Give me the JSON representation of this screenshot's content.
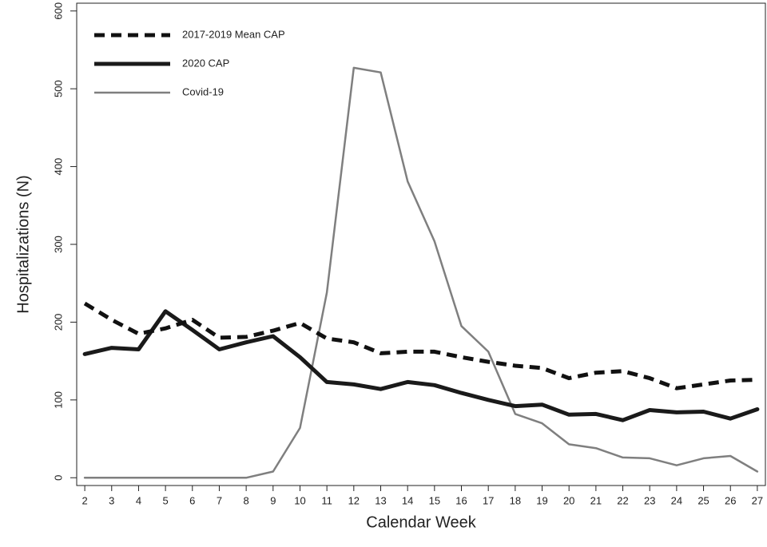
{
  "chart_data": {
    "type": "line",
    "title": "",
    "xlabel": "Calendar Week",
    "ylabel": "Hospitalizations (N)",
    "xlim": [
      1.7,
      27.3
    ],
    "ylim": [
      -10,
      610
    ],
    "grid": false,
    "legend_position": "top-left",
    "x": [
      2,
      3,
      4,
      5,
      6,
      7,
      8,
      9,
      10,
      11,
      12,
      13,
      14,
      15,
      16,
      17,
      18,
      19,
      20,
      21,
      22,
      23,
      24,
      25,
      26,
      27
    ],
    "x_tick_labels": [
      "2",
      "3",
      "4",
      "5",
      "6",
      "7",
      "8",
      "9",
      "10",
      "11",
      "12",
      "13",
      "14",
      "15",
      "16",
      "17",
      "18",
      "19",
      "20",
      "21",
      "22",
      "23",
      "24",
      "25",
      "26",
      "27"
    ],
    "y_ticks": [
      0,
      100,
      200,
      300,
      400,
      500,
      600
    ],
    "y_tick_labels": [
      "0",
      "100",
      "200",
      "300",
      "400",
      "500",
      "600"
    ],
    "series": [
      {
        "name": "2017-2019 Mean CAP",
        "style": "dashed-thick",
        "color": "#111111",
        "values": [
          224,
          203,
          185,
          192,
          203,
          180,
          181,
          189,
          199,
          179,
          174,
          160,
          162,
          162,
          155,
          149,
          144,
          141,
          128,
          135,
          137,
          128,
          115,
          120,
          125,
          126
        ]
      },
      {
        "name": "2020 CAP",
        "style": "solid-thick",
        "color": "#1a1a1a",
        "values": [
          159,
          167,
          165,
          214,
          190,
          165,
          174,
          182,
          155,
          123,
          120,
          114,
          123,
          119,
          109,
          100,
          92,
          94,
          81,
          82,
          74,
          87,
          84,
          85,
          76,
          88
        ]
      },
      {
        "name": "Covid-19",
        "style": "solid-thin",
        "color": "#7f7f7f",
        "values": [
          0,
          0,
          0,
          0,
          0,
          0,
          0,
          8,
          64,
          238,
          527,
          521,
          381,
          304,
          195,
          162,
          82,
          70,
          43,
          38,
          26,
          25,
          16,
          25,
          28,
          8
        ]
      }
    ]
  }
}
